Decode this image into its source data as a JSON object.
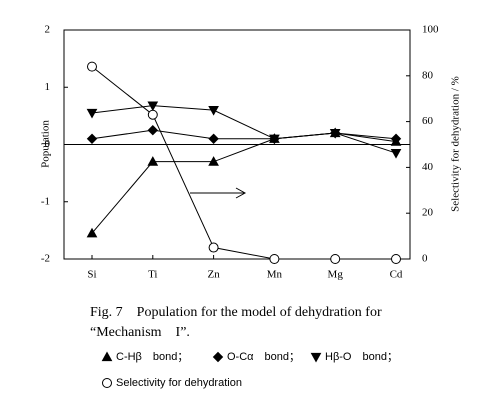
{
  "chart_data": {
    "type": "line",
    "categories": [
      "Si",
      "Ti",
      "Zn",
      "Mn",
      "Mg",
      "Cd"
    ],
    "y_label": "Population",
    "y2_label": "Selectivity for dehydration / %",
    "ylim": [
      -2,
      2
    ],
    "yticks": [
      -2,
      -1,
      0,
      1,
      2
    ],
    "y2lim": [
      0,
      100
    ],
    "y2ticks": [
      0,
      20,
      40,
      60,
      80,
      100
    ],
    "series": [
      {
        "name": "C-Hβ　bond；",
        "color": "#000000",
        "marker": "triangle-up",
        "values": [
          -1.55,
          -0.3,
          -0.3,
          0.1,
          0.2,
          0.05
        ]
      },
      {
        "name": "O-Cα　bond；",
        "color": "#000000",
        "marker": "diamond",
        "values": [
          0.1,
          0.25,
          0.1,
          0.1,
          0.2,
          0.1
        ]
      },
      {
        "name": "Hβ-O　bond；",
        "color": "#000000",
        "marker": "triangle-down",
        "values": [
          0.55,
          0.68,
          0.6,
          0.1,
          0.2,
          -0.15
        ]
      },
      {
        "name": "Selectivity for dehydration",
        "color": "#000000",
        "marker": "circle-open",
        "axis": "y2",
        "values": [
          84,
          63,
          5,
          0,
          0,
          0
        ]
      }
    ],
    "caption": [
      "Fig. 7　Population for the model of dehydration for",
      "“Mechanism　I”."
    ]
  }
}
